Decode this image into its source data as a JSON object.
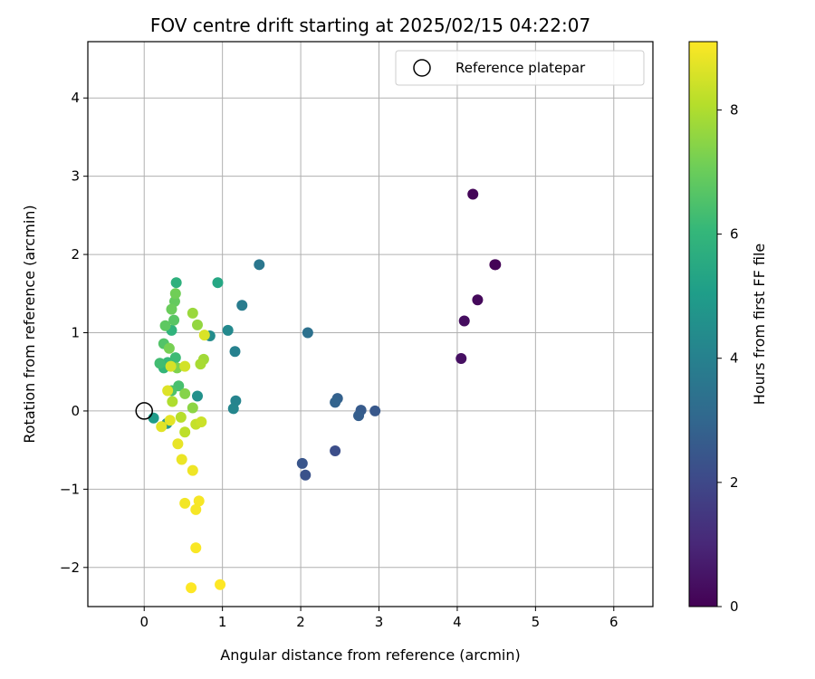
{
  "chart_data": {
    "type": "scatter",
    "title": "FOV centre drift starting at 2025/02/15 04:22:07",
    "xlabel": "Angular distance from reference (arcmin)",
    "ylabel": "Rotation from reference (arcmin)",
    "xlim": [
      -0.72,
      6.5
    ],
    "ylim": [
      -2.5,
      4.72
    ],
    "xticks": [
      0,
      1,
      2,
      3,
      4,
      5,
      6
    ],
    "yticks": [
      -2,
      -1,
      0,
      1,
      2,
      3,
      4
    ],
    "grid": true,
    "legend": {
      "placement": "top-right",
      "entries": [
        "Reference platepar"
      ]
    },
    "reference_point": {
      "x": 0,
      "y": 0,
      "label": "Reference platepar",
      "marker": "open-circle"
    },
    "colorbar": {
      "label": "Hours from first FF file",
      "min": 0,
      "max": 9.1,
      "ticks": [
        0,
        2,
        4,
        6,
        8
      ],
      "colormap": "viridis"
    },
    "colormap_stops": [
      "#440154",
      "#482878",
      "#3e4989",
      "#31688e",
      "#26828e",
      "#1f9e89",
      "#35b779",
      "#6ece58",
      "#b5de2b",
      "#fde725"
    ],
    "points": [
      {
        "x": 4.48,
        "y": 1.87,
        "c": 0.0
      },
      {
        "x": 4.49,
        "y": 1.87,
        "c": 0.05
      },
      {
        "x": 4.2,
        "y": 2.77,
        "c": 0.1
      },
      {
        "x": 4.26,
        "y": 1.42,
        "c": 0.2
      },
      {
        "x": 4.09,
        "y": 1.15,
        "c": 0.3
      },
      {
        "x": 4.05,
        "y": 0.67,
        "c": 0.4
      },
      {
        "x": 2.44,
        "y": -0.51,
        "c": 2.2
      },
      {
        "x": 2.06,
        "y": -0.82,
        "c": 2.3
      },
      {
        "x": 2.02,
        "y": -0.67,
        "c": 2.4
      },
      {
        "x": 2.95,
        "y": 0.0,
        "c": 2.5
      },
      {
        "x": 2.77,
        "y": 0.01,
        "c": 2.6
      },
      {
        "x": 2.74,
        "y": -0.06,
        "c": 2.7
      },
      {
        "x": 2.47,
        "y": 0.16,
        "c": 2.8
      },
      {
        "x": 2.44,
        "y": 0.11,
        "c": 2.9
      },
      {
        "x": 2.09,
        "y": 1.0,
        "c": 3.4
      },
      {
        "x": 1.47,
        "y": 1.87,
        "c": 3.6
      },
      {
        "x": 1.25,
        "y": 1.35,
        "c": 3.8
      },
      {
        "x": 1.16,
        "y": 0.76,
        "c": 4.0
      },
      {
        "x": 1.17,
        "y": 0.13,
        "c": 4.1
      },
      {
        "x": 1.14,
        "y": 0.03,
        "c": 4.2
      },
      {
        "x": 1.07,
        "y": 1.03,
        "c": 4.3
      },
      {
        "x": 0.84,
        "y": 0.96,
        "c": 4.4
      },
      {
        "x": 0.68,
        "y": 0.19,
        "c": 4.6
      },
      {
        "x": 0.29,
        "y": -0.16,
        "c": 4.8
      },
      {
        "x": 0.12,
        "y": -0.09,
        "c": 5.0
      },
      {
        "x": 0.94,
        "y": 1.64,
        "c": 5.4
      },
      {
        "x": 0.41,
        "y": 1.64,
        "c": 5.8
      },
      {
        "x": 0.35,
        "y": 1.03,
        "c": 5.9
      },
      {
        "x": 0.25,
        "y": 0.55,
        "c": 6.0
      },
      {
        "x": 0.3,
        "y": 0.62,
        "c": 6.1
      },
      {
        "x": 0.4,
        "y": 0.68,
        "c": 6.2
      },
      {
        "x": 0.2,
        "y": 0.61,
        "c": 6.3
      },
      {
        "x": 0.44,
        "y": 0.32,
        "c": 6.4
      },
      {
        "x": 0.35,
        "y": 0.26,
        "c": 6.5
      },
      {
        "x": 0.25,
        "y": 0.86,
        "c": 6.6
      },
      {
        "x": 0.38,
        "y": 1.16,
        "c": 6.7
      },
      {
        "x": 0.27,
        "y": 1.09,
        "c": 6.8
      },
      {
        "x": 0.39,
        "y": 1.4,
        "c": 6.9
      },
      {
        "x": 0.35,
        "y": 1.3,
        "c": 7.0
      },
      {
        "x": 0.4,
        "y": 1.5,
        "c": 7.1
      },
      {
        "x": 0.32,
        "y": 0.8,
        "c": 7.2
      },
      {
        "x": 0.42,
        "y": 0.55,
        "c": 7.3
      },
      {
        "x": 0.52,
        "y": 0.22,
        "c": 7.4
      },
      {
        "x": 0.62,
        "y": 0.04,
        "c": 7.5
      },
      {
        "x": 0.68,
        "y": 1.1,
        "c": 7.6
      },
      {
        "x": 0.62,
        "y": 1.25,
        "c": 7.7
      },
      {
        "x": 0.76,
        "y": 0.66,
        "c": 7.8
      },
      {
        "x": 0.72,
        "y": 0.6,
        "c": 7.9
      },
      {
        "x": 0.36,
        "y": 0.12,
        "c": 8.0
      },
      {
        "x": 0.47,
        "y": -0.08,
        "c": 8.1
      },
      {
        "x": 0.52,
        "y": -0.27,
        "c": 8.2
      },
      {
        "x": 0.66,
        "y": -0.17,
        "c": 8.3
      },
      {
        "x": 0.73,
        "y": -0.14,
        "c": 8.4
      },
      {
        "x": 0.52,
        "y": 0.57,
        "c": 8.5
      },
      {
        "x": 0.34,
        "y": 0.57,
        "c": 8.55
      },
      {
        "x": 0.77,
        "y": 0.97,
        "c": 8.6
      },
      {
        "x": 0.3,
        "y": 0.26,
        "c": 8.65
      },
      {
        "x": 0.22,
        "y": -0.2,
        "c": 8.7
      },
      {
        "x": 0.33,
        "y": -0.12,
        "c": 8.75
      },
      {
        "x": 0.43,
        "y": -0.42,
        "c": 8.8
      },
      {
        "x": 0.48,
        "y": -0.62,
        "c": 8.85
      },
      {
        "x": 0.62,
        "y": -0.76,
        "c": 8.9
      },
      {
        "x": 0.52,
        "y": -1.18,
        "c": 8.95
      },
      {
        "x": 0.7,
        "y": -1.15,
        "c": 9.0
      },
      {
        "x": 0.66,
        "y": -1.26,
        "c": 9.0
      },
      {
        "x": 0.66,
        "y": -1.75,
        "c": 9.05
      },
      {
        "x": 0.6,
        "y": -2.26,
        "c": 9.1
      },
      {
        "x": 0.97,
        "y": -2.22,
        "c": 9.1
      }
    ]
  }
}
